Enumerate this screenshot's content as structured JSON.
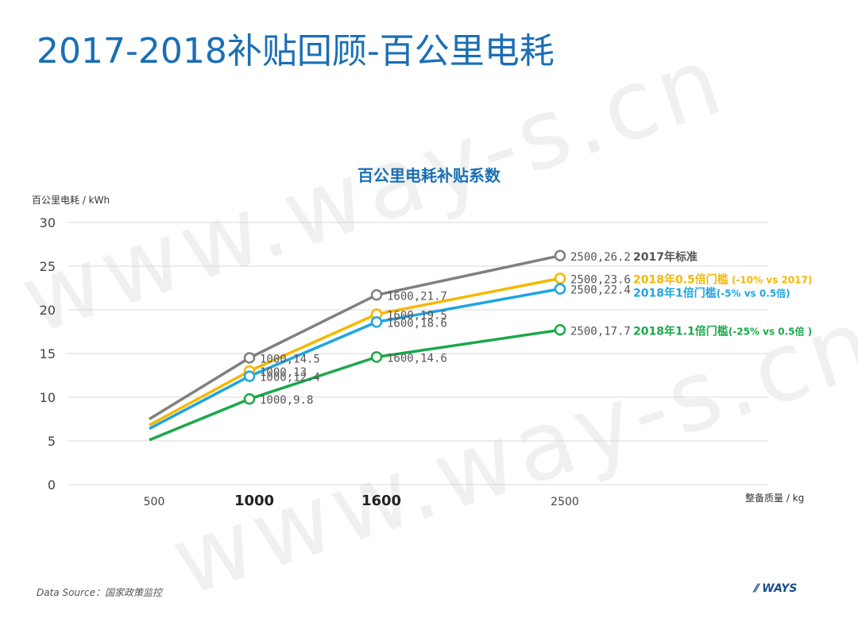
{
  "title": "2017-2018补贴回顾-百公里电耗",
  "watermark": "www.way-s.cn",
  "footer": {
    "source": "Data Source：国家政策监控",
    "logo": "WAYS"
  },
  "chart_data": {
    "type": "line",
    "title": "百公里电耗补贴系数",
    "ylabel": "百公里电耗 / kWh",
    "xlabel": "整备质量 / kg",
    "ylim": [
      0,
      30
    ],
    "yticks": [
      0,
      5,
      10,
      15,
      20,
      25,
      30
    ],
    "xticks": [
      {
        "value": 500,
        "label": "500",
        "bold": false
      },
      {
        "value": 1000,
        "label": "1000",
        "bold": true
      },
      {
        "value": 1600,
        "label": "1600",
        "bold": true
      },
      {
        "value": 2500,
        "label": "2500",
        "bold": false
      }
    ],
    "grid": true,
    "legend": "right-end labels",
    "series": [
      {
        "name": "2017年标准",
        "color": "#808080",
        "points": [
          {
            "x": 500,
            "y": 7.5,
            "marker": false,
            "label": ""
          },
          {
            "x": 1000,
            "y": 14.5,
            "marker": true,
            "label": "1000,14.5"
          },
          {
            "x": 1600,
            "y": 21.7,
            "marker": true,
            "label": "1600,21.7"
          },
          {
            "x": 2500,
            "y": 26.2,
            "marker": true,
            "label": "2500,26.2"
          }
        ]
      },
      {
        "name": "2018年0.5倍门槛",
        "name_suffix": " (-10% vs 2017)",
        "color": "#f5b800",
        "points": [
          {
            "x": 500,
            "y": 6.8,
            "marker": false,
            "label": ""
          },
          {
            "x": 1000,
            "y": 13,
            "marker": true,
            "label": "1000,13"
          },
          {
            "x": 1600,
            "y": 19.5,
            "marker": true,
            "label": "1600,19.5"
          },
          {
            "x": 2500,
            "y": 23.6,
            "marker": true,
            "label": "2500,23.6"
          }
        ]
      },
      {
        "name": "2018年1倍门槛",
        "name_suffix": "(-5% vs 0.5倍)",
        "color": "#1ea5e0",
        "points": [
          {
            "x": 500,
            "y": 6.4,
            "marker": false,
            "label": ""
          },
          {
            "x": 1000,
            "y": 12.4,
            "marker": true,
            "label": "1000,12.4"
          },
          {
            "x": 1600,
            "y": 18.6,
            "marker": true,
            "label": "1600,18.6"
          },
          {
            "x": 2500,
            "y": 22.4,
            "marker": true,
            "label": "2500,22.4"
          }
        ]
      },
      {
        "name": "2018年1.1倍门槛",
        "name_suffix": "(-25% vs 0.5倍 )",
        "color": "#1aa84a",
        "points": [
          {
            "x": 500,
            "y": 5.1,
            "marker": false,
            "label": ""
          },
          {
            "x": 1000,
            "y": 9.8,
            "marker": true,
            "label": "1000,9.8"
          },
          {
            "x": 1600,
            "y": 14.6,
            "marker": true,
            "label": "1600,14.6"
          },
          {
            "x": 2500,
            "y": 17.7,
            "marker": true,
            "label": "2500,17.7"
          }
        ]
      }
    ]
  }
}
